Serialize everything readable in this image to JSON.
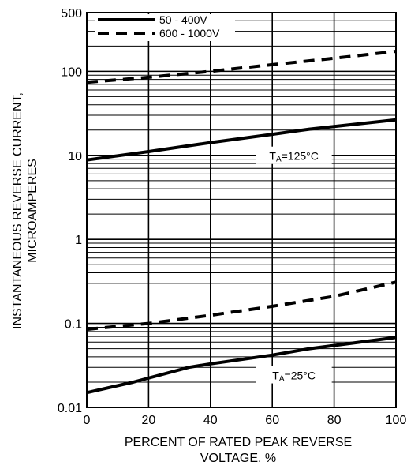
{
  "chart_data": {
    "type": "line",
    "title": "",
    "xlabel_lines": [
      "PERCENT OF RATED PEAK REVERSE",
      "VOLTAGE, %"
    ],
    "ylabel_lines": [
      "INSTANTANEOUS REVERSE CURRENT,",
      "MICROAMPERES"
    ],
    "x_ticks": [
      "0",
      "20",
      "40",
      "60",
      "80",
      "100"
    ],
    "y_ticks": [
      "0.01",
      "0.1",
      "1",
      "10",
      "100",
      "500"
    ],
    "xlim": [
      0,
      100
    ],
    "ylim": [
      0.01,
      500
    ],
    "yscale": "log",
    "grid": true,
    "legend": {
      "placement": "top-left",
      "entries": [
        {
          "label": "50 - 400V",
          "style": "solid"
        },
        {
          "label": "600 - 1000V",
          "style": "dashed"
        }
      ]
    },
    "annotations": [
      {
        "sub": "A",
        "label": "=125°C",
        "prefix": "T",
        "x": 67,
        "y": 9.8
      },
      {
        "sub": "A",
        "label": "=25°C",
        "prefix": "T",
        "x": 67,
        "y": 0.024
      }
    ],
    "series": [
      {
        "name": "50 - 400V",
        "group": "125°C",
        "style": "solid",
        "x": [
          0,
          20,
          40,
          60,
          72,
          100
        ],
        "y": [
          8.8,
          11.1,
          14.2,
          17.8,
          20.5,
          26.5
        ]
      },
      {
        "name": "600 - 1000V",
        "group": "125°C",
        "style": "dashed",
        "x": [
          0,
          20,
          40,
          60,
          80,
          100
        ],
        "y": [
          74,
          85,
          100,
          120,
          143,
          173
        ]
      },
      {
        "name": "50 - 400V",
        "group": "25°C",
        "style": "solid",
        "x": [
          0,
          15,
          33,
          40,
          60,
          72,
          100
        ],
        "y": [
          0.015,
          0.02,
          0.03,
          0.033,
          0.042,
          0.05,
          0.068
        ]
      },
      {
        "name": "600 - 1000V",
        "group": "25°C",
        "style": "dashed",
        "x": [
          0,
          20,
          40,
          60,
          80,
          100
        ],
        "y": [
          0.085,
          0.1,
          0.125,
          0.16,
          0.21,
          0.31
        ]
      }
    ]
  }
}
